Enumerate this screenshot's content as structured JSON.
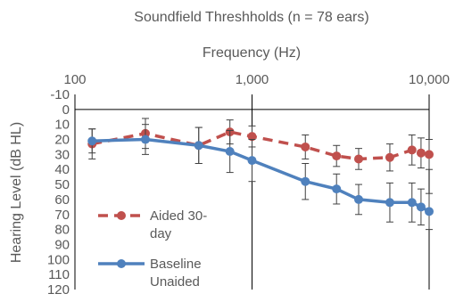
{
  "chart_data": {
    "type": "line",
    "title": "Soundfield Threshholds (n = 78 ears)",
    "xlabel": "Frequency (Hz)",
    "ylabel": "Hearing Level (dB HL)",
    "x_scale": "log",
    "xlim": [
      100,
      10000
    ],
    "x_ticks": [
      "100",
      "1,000",
      "10,000"
    ],
    "ylim": [
      -10,
      120
    ],
    "y_inverted": true,
    "y_ticks": [
      "-10",
      "0",
      "10",
      "20",
      "30",
      "40",
      "50",
      "60",
      "70",
      "80",
      "90",
      "100",
      "110",
      "120"
    ],
    "x_axis_position": "top",
    "grid": false,
    "legend_position": "bottom-left",
    "series": [
      {
        "name": "Aided 30-day",
        "color": "#C0504D",
        "line_style": "dashed",
        "marker": "circle",
        "x": [
          125,
          250,
          500,
          750,
          1000,
          2000,
          3000,
          4000,
          6000,
          8000,
          9000,
          10000
        ],
        "y": [
          23,
          16,
          24,
          15,
          18,
          25,
          31,
          33,
          32,
          27,
          29,
          30
        ],
        "err": [
          10,
          10,
          12,
          8,
          7,
          8,
          7,
          7,
          9,
          10,
          10,
          10
        ]
      },
      {
        "name": "Baseline Unaided",
        "color": "#4F81BD",
        "line_style": "solid",
        "marker": "circle",
        "x": [
          125,
          250,
          500,
          750,
          1000,
          2000,
          3000,
          4000,
          6000,
          8000,
          9000,
          10000
        ],
        "y": [
          21,
          20,
          24,
          28,
          34,
          48,
          53,
          60,
          62,
          62,
          65,
          68
        ],
        "err": [
          8,
          10,
          12,
          14,
          14,
          12,
          10,
          10,
          13,
          13,
          12,
          12
        ]
      }
    ]
  }
}
